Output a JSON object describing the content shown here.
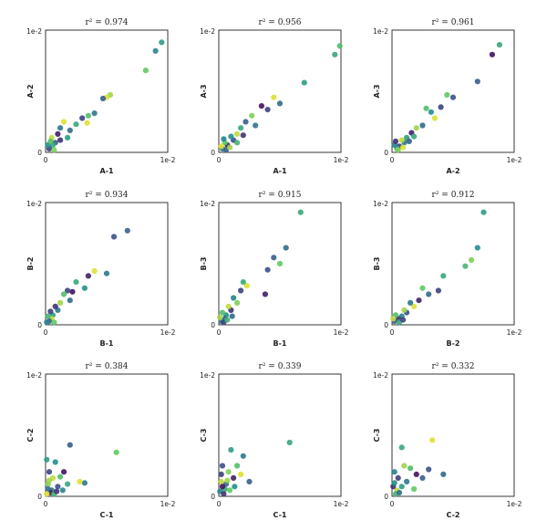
{
  "figure": {
    "colormap": [
      "#440154",
      "#3b528b",
      "#21918c",
      "#5ec962",
      "#fde725"
    ]
  },
  "chart_data": [
    {
      "type": "scatter",
      "title": "r² = 0.974",
      "xlabel": "A-1",
      "ylabel": "A-2",
      "xlim": [
        0,
        0.01
      ],
      "ylim": [
        0,
        0.01
      ],
      "tick_labels": {
        "x_min": "0",
        "x_max": "1e-2",
        "y_min": "0",
        "y_max": "1e-2"
      },
      "points": [
        {
          "x": 0.0095,
          "y": 0.009,
          "c": 0.55
        },
        {
          "x": 0.009,
          "y": 0.0083,
          "c": 0.45
        },
        {
          "x": 0.0082,
          "y": 0.0067,
          "c": 0.75
        },
        {
          "x": 0.0053,
          "y": 0.0047,
          "c": 0.85
        },
        {
          "x": 0.005,
          "y": 0.0045,
          "c": 0.95
        },
        {
          "x": 0.0047,
          "y": 0.0044,
          "c": 0.3
        },
        {
          "x": 0.004,
          "y": 0.0032,
          "c": 0.4
        },
        {
          "x": 0.0035,
          "y": 0.003,
          "c": 0.7
        },
        {
          "x": 0.0034,
          "y": 0.0024,
          "c": 0.95
        },
        {
          "x": 0.003,
          "y": 0.0028,
          "c": 0.2
        },
        {
          "x": 0.0025,
          "y": 0.0023,
          "c": 0.6
        },
        {
          "x": 0.002,
          "y": 0.0018,
          "c": 0.35
        },
        {
          "x": 0.0015,
          "y": 0.0025,
          "c": 0.95
        },
        {
          "x": 0.0012,
          "y": 0.002,
          "c": 0.4
        },
        {
          "x": 0.001,
          "y": 0.0015,
          "c": 0.1
        },
        {
          "x": 0.0008,
          "y": 0.0008,
          "c": 0.3
        },
        {
          "x": 0.0006,
          "y": 0.0006,
          "c": 0.6
        },
        {
          "x": 0.0005,
          "y": 0.0012,
          "c": 0.9
        },
        {
          "x": 0.0003,
          "y": 0.0003,
          "c": 0.2
        },
        {
          "x": 0.0002,
          "y": 0.0006,
          "c": 0.5
        },
        {
          "x": 0.0007,
          "y": 0.0002,
          "c": 0.8
        },
        {
          "x": 0.0012,
          "y": 0.001,
          "c": 0.15
        },
        {
          "x": 0.0004,
          "y": 0.0009,
          "c": 0.7
        },
        {
          "x": 0.0018,
          "y": 0.0012,
          "c": 0.55
        }
      ]
    },
    {
      "type": "scatter",
      "title": "r² = 0.956",
      "xlabel": "A-1",
      "ylabel": "A-3",
      "xlim": [
        0,
        0.01
      ],
      "ylim": [
        0,
        0.01
      ],
      "tick_labels": {
        "x_min": "0",
        "x_max": "1e-2",
        "y_min": "0",
        "y_max": "1e-2"
      },
      "points": [
        {
          "x": 0.0099,
          "y": 0.0087,
          "c": 0.7
        },
        {
          "x": 0.0095,
          "y": 0.008,
          "c": 0.6
        },
        {
          "x": 0.007,
          "y": 0.0057,
          "c": 0.55
        },
        {
          "x": 0.005,
          "y": 0.004,
          "c": 0.35
        },
        {
          "x": 0.0045,
          "y": 0.0045,
          "c": 0.95
        },
        {
          "x": 0.004,
          "y": 0.0035,
          "c": 0.2
        },
        {
          "x": 0.0035,
          "y": 0.0038,
          "c": 0.05
        },
        {
          "x": 0.003,
          "y": 0.0022,
          "c": 0.4
        },
        {
          "x": 0.0027,
          "y": 0.003,
          "c": 0.8
        },
        {
          "x": 0.0022,
          "y": 0.0025,
          "c": 0.3
        },
        {
          "x": 0.0018,
          "y": 0.002,
          "c": 0.6
        },
        {
          "x": 0.0015,
          "y": 0.0015,
          "c": 0.9
        },
        {
          "x": 0.0012,
          "y": 0.001,
          "c": 0.25
        },
        {
          "x": 0.001,
          "y": 0.0013,
          "c": 0.5
        },
        {
          "x": 0.0007,
          "y": 0.0006,
          "c": 0.1
        },
        {
          "x": 0.0005,
          "y": 0.0008,
          "c": 0.75
        },
        {
          "x": 0.0003,
          "y": 0.0003,
          "c": 0.4
        },
        {
          "x": 0.0002,
          "y": 0.0005,
          "c": 0.95
        },
        {
          "x": 0.0006,
          "y": 0.0002,
          "c": 0.3
        },
        {
          "x": 0.0015,
          "y": 0.0008,
          "c": 0.65
        },
        {
          "x": 0.002,
          "y": 0.0014,
          "c": 0.15
        },
        {
          "x": 0.0009,
          "y": 0.0004,
          "c": 0.85
        },
        {
          "x": 0.0004,
          "y": 0.0011,
          "c": 0.45
        }
      ]
    },
    {
      "type": "scatter",
      "title": "r² = 0.961",
      "xlabel": "A-2",
      "ylabel": "A-3",
      "xlim": [
        0,
        0.01
      ],
      "ylim": [
        0,
        0.01
      ],
      "tick_labels": {
        "x_min": "0",
        "x_max": "1e-2",
        "y_min": "0",
        "y_max": "1e-2"
      },
      "points": [
        {
          "x": 0.0088,
          "y": 0.0088,
          "c": 0.6
        },
        {
          "x": 0.0082,
          "y": 0.008,
          "c": 0.05
        },
        {
          "x": 0.007,
          "y": 0.0058,
          "c": 0.3
        },
        {
          "x": 0.005,
          "y": 0.0045,
          "c": 0.25
        },
        {
          "x": 0.0045,
          "y": 0.0047,
          "c": 0.75
        },
        {
          "x": 0.004,
          "y": 0.0037,
          "c": 0.2
        },
        {
          "x": 0.0035,
          "y": 0.0028,
          "c": 0.95
        },
        {
          "x": 0.0032,
          "y": 0.0033,
          "c": 0.5
        },
        {
          "x": 0.0028,
          "y": 0.0036,
          "c": 0.7
        },
        {
          "x": 0.0025,
          "y": 0.0022,
          "c": 0.35
        },
        {
          "x": 0.002,
          "y": 0.002,
          "c": 0.85
        },
        {
          "x": 0.0016,
          "y": 0.0016,
          "c": 0.1
        },
        {
          "x": 0.0012,
          "y": 0.0012,
          "c": 0.55
        },
        {
          "x": 0.001,
          "y": 0.0008,
          "c": 0.4
        },
        {
          "x": 0.0008,
          "y": 0.001,
          "c": 0.9
        },
        {
          "x": 0.0006,
          "y": 0.0005,
          "c": 0.2
        },
        {
          "x": 0.0004,
          "y": 0.0003,
          "c": 0.65
        },
        {
          "x": 0.0002,
          "y": 0.0006,
          "c": 0.45
        },
        {
          "x": 0.0005,
          "y": 0.0002,
          "c": 0.8
        },
        {
          "x": 0.0014,
          "y": 0.0009,
          "c": 0.3
        },
        {
          "x": 0.0018,
          "y": 0.0013,
          "c": 0.6
        },
        {
          "x": 0.0003,
          "y": 0.0009,
          "c": 0.15
        },
        {
          "x": 0.0009,
          "y": 0.0004,
          "c": 0.95
        }
      ]
    },
    {
      "type": "scatter",
      "title": "r² = 0.934",
      "xlabel": "B-1",
      "ylabel": "B-2",
      "xlim": [
        0,
        0.01
      ],
      "ylim": [
        0,
        0.01
      ],
      "tick_labels": {
        "x_min": "0",
        "x_max": "1e-2",
        "y_min": "0",
        "y_max": "1e-2"
      },
      "points": [
        {
          "x": 0.0067,
          "y": 0.0077,
          "c": 0.3
        },
        {
          "x": 0.0056,
          "y": 0.0072,
          "c": 0.25
        },
        {
          "x": 0.005,
          "y": 0.0042,
          "c": 0.4
        },
        {
          "x": 0.004,
          "y": 0.0044,
          "c": 0.95
        },
        {
          "x": 0.0035,
          "y": 0.004,
          "c": 0.1
        },
        {
          "x": 0.0032,
          "y": 0.003,
          "c": 0.5
        },
        {
          "x": 0.0025,
          "y": 0.0035,
          "c": 0.6
        },
        {
          "x": 0.0022,
          "y": 0.0027,
          "c": 0.05
        },
        {
          "x": 0.002,
          "y": 0.002,
          "c": 0.35
        },
        {
          "x": 0.0018,
          "y": 0.0028,
          "c": 0.2
        },
        {
          "x": 0.0015,
          "y": 0.0025,
          "c": 0.7
        },
        {
          "x": 0.0012,
          "y": 0.0018,
          "c": 0.85
        },
        {
          "x": 0.001,
          "y": 0.0012,
          "c": 0.4
        },
        {
          "x": 0.0008,
          "y": 0.0015,
          "c": 0.15
        },
        {
          "x": 0.0006,
          "y": 0.0008,
          "c": 0.55
        },
        {
          "x": 0.0005,
          "y": 0.0005,
          "c": 0.9
        },
        {
          "x": 0.0003,
          "y": 0.0003,
          "c": 0.3
        },
        {
          "x": 0.0002,
          "y": 0.0007,
          "c": 0.65
        },
        {
          "x": 0.0004,
          "y": 0.0011,
          "c": 0.2
        },
        {
          "x": 0.0007,
          "y": 0.0002,
          "c": 0.75
        },
        {
          "x": 0.0001,
          "y": 0.0002,
          "c": 0.45
        }
      ]
    },
    {
      "type": "scatter",
      "title": "r² = 0.915",
      "xlabel": "B-1",
      "ylabel": "B-3",
      "xlim": [
        0,
        0.01
      ],
      "ylim": [
        0,
        0.01
      ],
      "tick_labels": {
        "x_min": "0",
        "x_max": "1e-2",
        "y_min": "0",
        "y_max": "1e-2"
      },
      "points": [
        {
          "x": 0.0067,
          "y": 0.0092,
          "c": 0.6
        },
        {
          "x": 0.0055,
          "y": 0.0063,
          "c": 0.35
        },
        {
          "x": 0.005,
          "y": 0.005,
          "c": 0.75
        },
        {
          "x": 0.0045,
          "y": 0.0055,
          "c": 0.3
        },
        {
          "x": 0.004,
          "y": 0.0045,
          "c": 0.25
        },
        {
          "x": 0.0038,
          "y": 0.0025,
          "c": 0.1
        },
        {
          "x": 0.0023,
          "y": 0.0032,
          "c": 0.95
        },
        {
          "x": 0.002,
          "y": 0.0035,
          "c": 0.6
        },
        {
          "x": 0.0018,
          "y": 0.0028,
          "c": 0.2
        },
        {
          "x": 0.0015,
          "y": 0.0018,
          "c": 0.8
        },
        {
          "x": 0.0012,
          "y": 0.0022,
          "c": 0.45
        },
        {
          "x": 0.001,
          "y": 0.0012,
          "c": 0.15
        },
        {
          "x": 0.0008,
          "y": 0.0015,
          "c": 0.9
        },
        {
          "x": 0.0006,
          "y": 0.0008,
          "c": 0.5
        },
        {
          "x": 0.0005,
          "y": 0.0005,
          "c": 0.3
        },
        {
          "x": 0.0003,
          "y": 0.001,
          "c": 0.7
        },
        {
          "x": 0.0002,
          "y": 0.0003,
          "c": 0.4
        },
        {
          "x": 0.0001,
          "y": 0.0006,
          "c": 0.85
        },
        {
          "x": 0.0004,
          "y": 0.0002,
          "c": 0.2
        },
        {
          "x": 0.0007,
          "y": 0.0004,
          "c": 0.65
        },
        {
          "x": 0.0011,
          "y": 0.0007,
          "c": 0.35
        }
      ]
    },
    {
      "type": "scatter",
      "title": "r² = 0.912",
      "xlabel": "B-2",
      "ylabel": "B-3",
      "xlim": [
        0,
        0.01
      ],
      "ylim": [
        0,
        0.01
      ],
      "tick_labels": {
        "x_min": "0",
        "x_max": "1e-2",
        "y_min": "0",
        "y_max": "1e-2"
      },
      "points": [
        {
          "x": 0.0075,
          "y": 0.0092,
          "c": 0.55
        },
        {
          "x": 0.007,
          "y": 0.0063,
          "c": 0.5
        },
        {
          "x": 0.0065,
          "y": 0.0053,
          "c": 0.8
        },
        {
          "x": 0.006,
          "y": 0.0048,
          "c": 0.65
        },
        {
          "x": 0.0042,
          "y": 0.004,
          "c": 0.6
        },
        {
          "x": 0.0038,
          "y": 0.0028,
          "c": 0.2
        },
        {
          "x": 0.003,
          "y": 0.0025,
          "c": 0.35
        },
        {
          "x": 0.0025,
          "y": 0.003,
          "c": 0.75
        },
        {
          "x": 0.0022,
          "y": 0.002,
          "c": 0.1
        },
        {
          "x": 0.0018,
          "y": 0.0015,
          "c": 0.95
        },
        {
          "x": 0.0015,
          "y": 0.0018,
          "c": 0.4
        },
        {
          "x": 0.0012,
          "y": 0.001,
          "c": 0.25
        },
        {
          "x": 0.001,
          "y": 0.0012,
          "c": 0.85
        },
        {
          "x": 0.0008,
          "y": 0.0007,
          "c": 0.45
        },
        {
          "x": 0.0005,
          "y": 0.0005,
          "c": 0.15
        },
        {
          "x": 0.0003,
          "y": 0.0008,
          "c": 0.7
        },
        {
          "x": 0.0002,
          "y": 0.0003,
          "c": 0.3
        },
        {
          "x": 0.0006,
          "y": 0.0002,
          "c": 0.6
        },
        {
          "x": 0.0001,
          "y": 0.0005,
          "c": 0.9
        },
        {
          "x": 0.0009,
          "y": 0.0004,
          "c": 0.2
        }
      ]
    },
    {
      "type": "scatter",
      "title": "r² = 0.384",
      "xlabel": "C-1",
      "ylabel": "C-2",
      "xlim": [
        0,
        0.01
      ],
      "ylim": [
        0,
        0.01
      ],
      "tick_labels": {
        "x_min": "0",
        "x_max": "1e-2",
        "y_min": "0",
        "y_max": "1e-2"
      },
      "points": [
        {
          "x": 0.0058,
          "y": 0.0036,
          "c": 0.75
        },
        {
          "x": 0.002,
          "y": 0.0042,
          "c": 0.3
        },
        {
          "x": 0.0032,
          "y": 0.0011,
          "c": 0.4
        },
        {
          "x": 0.0028,
          "y": 0.0012,
          "c": 0.95
        },
        {
          "x": 0.0018,
          "y": 0.001,
          "c": 0.6
        },
        {
          "x": 0.0015,
          "y": 0.002,
          "c": 0.05
        },
        {
          "x": 0.0012,
          "y": 0.0016,
          "c": 0.7
        },
        {
          "x": 0.0008,
          "y": 0.0028,
          "c": 0.5
        },
        {
          "x": 0.001,
          "y": 0.0008,
          "c": 0.25
        },
        {
          "x": 0.0006,
          "y": 0.0015,
          "c": 0.9
        },
        {
          "x": 0.0005,
          "y": 0.0005,
          "c": 0.4
        },
        {
          "x": 0.0003,
          "y": 0.002,
          "c": 0.2
        },
        {
          "x": 0.0002,
          "y": 0.001,
          "c": 0.8
        },
        {
          "x": 0.0001,
          "y": 0.003,
          "c": 0.55
        },
        {
          "x": 0.0004,
          "y": 0.0003,
          "c": 0.1
        },
        {
          "x": 0.0007,
          "y": 0.0002,
          "c": 0.65
        },
        {
          "x": 0.0002,
          "y": 0.0006,
          "c": 0.35
        },
        {
          "x": 0.0001,
          "y": 0.0002,
          "c": 0.95
        },
        {
          "x": 0.0009,
          "y": 0.0004,
          "c": 0.15
        },
        {
          "x": 0.0014,
          "y": 0.0005,
          "c": 0.45
        },
        {
          "x": 0.0003,
          "y": 0.0013,
          "c": 0.85
        }
      ]
    },
    {
      "type": "scatter",
      "title": "r² = 0.339",
      "xlabel": "C-1",
      "ylabel": "C-3",
      "xlim": [
        0,
        0.01
      ],
      "ylim": [
        0,
        0.01
      ],
      "tick_labels": {
        "x_min": "0",
        "x_max": "1e-2",
        "y_min": "0",
        "y_max": "1e-2"
      },
      "points": [
        {
          "x": 0.0058,
          "y": 0.0044,
          "c": 0.6
        },
        {
          "x": 0.001,
          "y": 0.0038,
          "c": 0.55
        },
        {
          "x": 0.002,
          "y": 0.0033,
          "c": 0.4
        },
        {
          "x": 0.0015,
          "y": 0.0025,
          "c": 0.7
        },
        {
          "x": 0.0025,
          "y": 0.0012,
          "c": 0.3
        },
        {
          "x": 0.0018,
          "y": 0.0018,
          "c": 0.95
        },
        {
          "x": 0.0012,
          "y": 0.0015,
          "c": 0.1
        },
        {
          "x": 0.0008,
          "y": 0.002,
          "c": 0.8
        },
        {
          "x": 0.0006,
          "y": 0.001,
          "c": 0.35
        },
        {
          "x": 0.0005,
          "y": 0.0006,
          "c": 0.6
        },
        {
          "x": 0.0003,
          "y": 0.0025,
          "c": 0.25
        },
        {
          "x": 0.0002,
          "y": 0.0012,
          "c": 0.9
        },
        {
          "x": 0.0001,
          "y": 0.0004,
          "c": 0.45
        },
        {
          "x": 0.0004,
          "y": 0.0002,
          "c": 0.15
        },
        {
          "x": 0.0009,
          "y": 0.0005,
          "c": 0.75
        },
        {
          "x": 0.0013,
          "y": 0.0008,
          "c": 0.5
        },
        {
          "x": 0.0002,
          "y": 0.0018,
          "c": 0.2
        },
        {
          "x": 0.0007,
          "y": 0.0013,
          "c": 0.85
        },
        {
          "x": 0.0003,
          "y": 0.0008,
          "c": 0.05
        }
      ]
    },
    {
      "type": "scatter",
      "title": "r² = 0.332",
      "xlabel": "C-2",
      "ylabel": "C-3",
      "xlim": [
        0,
        0.01
      ],
      "ylim": [
        0,
        0.01
      ],
      "tick_labels": {
        "x_min": "0",
        "x_max": "1e-2",
        "y_min": "0",
        "y_max": "1e-2"
      },
      "points": [
        {
          "x": 0.0033,
          "y": 0.0046,
          "c": 0.95
        },
        {
          "x": 0.0042,
          "y": 0.0018,
          "c": 0.35
        },
        {
          "x": 0.0008,
          "y": 0.004,
          "c": 0.6
        },
        {
          "x": 0.003,
          "y": 0.0022,
          "c": 0.25
        },
        {
          "x": 0.0025,
          "y": 0.0015,
          "c": 0.3
        },
        {
          "x": 0.002,
          "y": 0.0018,
          "c": 0.05
        },
        {
          "x": 0.0015,
          "y": 0.0023,
          "c": 0.7
        },
        {
          "x": 0.0012,
          "y": 0.0012,
          "c": 0.4
        },
        {
          "x": 0.001,
          "y": 0.0025,
          "c": 0.85
        },
        {
          "x": 0.0008,
          "y": 0.0008,
          "c": 0.55
        },
        {
          "x": 0.0005,
          "y": 0.0015,
          "c": 0.2
        },
        {
          "x": 0.0004,
          "y": 0.0005,
          "c": 0.9
        },
        {
          "x": 0.0002,
          "y": 0.002,
          "c": 0.45
        },
        {
          "x": 0.0001,
          "y": 0.0008,
          "c": 0.15
        },
        {
          "x": 0.0003,
          "y": 0.0002,
          "c": 0.65
        },
        {
          "x": 0.0006,
          "y": 0.0003,
          "c": 0.35
        },
        {
          "x": 0.0018,
          "y": 0.0006,
          "c": 0.75
        },
        {
          "x": 0.0002,
          "y": 0.0011,
          "c": 0.5
        }
      ]
    }
  ]
}
